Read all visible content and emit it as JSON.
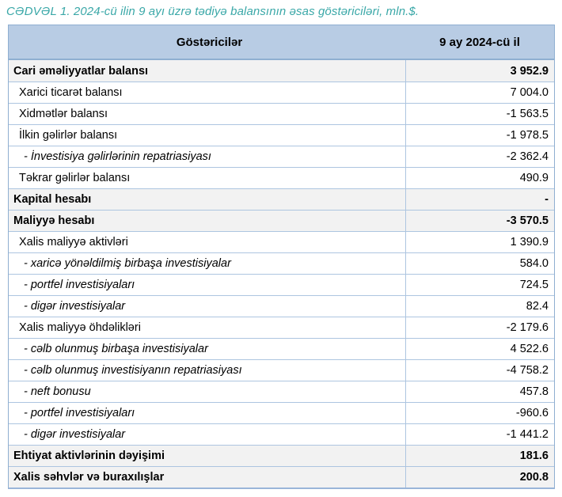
{
  "title": "CƏDVƏL 1. 2024-cü ilin 9 ayı üzrə tədiyə balansının əsas göstəriciləri, mln.$.",
  "table": {
    "columns": [
      "Göstəricilər",
      "9 ay 2024-cü il"
    ],
    "rows": [
      {
        "label": "Cari əməliyyatlar balansı",
        "value": "3 952.9",
        "style": "section"
      },
      {
        "label": "Xarici ticarət balansı",
        "value": "7 004.0",
        "style": "plain"
      },
      {
        "label": "Xidmətlər balansı",
        "value": "-1 563.5",
        "style": "plain"
      },
      {
        "label": "İlkin gəlirlər balansı",
        "value": "-1 978.5",
        "style": "plain"
      },
      {
        "label": "- İnvestisiya gəlirlərinin repatriasiyası",
        "value": "-2 362.4",
        "style": "sub"
      },
      {
        "label": "Təkrar gəlirlər balansı",
        "value": "490.9",
        "style": "plain"
      },
      {
        "label": "Kapital hesabı",
        "value": "-",
        "style": "section"
      },
      {
        "label": "Maliyyə hesabı",
        "value": "-3 570.5",
        "style": "section"
      },
      {
        "label": "Xalis maliyyə aktivləri",
        "value": "1 390.9",
        "style": "plain"
      },
      {
        "label": "- xaricə yönəldilmiş birbaşa investisiyalar",
        "value": "584.0",
        "style": "sub"
      },
      {
        "label": "- portfel investisiyaları",
        "value": "724.5",
        "style": "sub"
      },
      {
        "label": "- digər investisiyalar",
        "value": "82.4",
        "style": "sub"
      },
      {
        "label": "Xalis maliyyə öhdəlikləri",
        "value": "-2 179.6",
        "style": "plain"
      },
      {
        "label": "- cəlb olunmuş birbaşa investisiyalar",
        "value": "4 522.6",
        "style": "sub"
      },
      {
        "label": "- cəlb olunmuş investisiyanın repatriasiyası",
        "value": "-4 758.2",
        "style": "sub"
      },
      {
        "label": "- neft bonusu",
        "value": "457.8",
        "style": "sub"
      },
      {
        "label": "- portfel investisiyaları",
        "value": "-960.6",
        "style": "sub"
      },
      {
        "label": "- digər investisiyalar",
        "value": "-1 441.2",
        "style": "sub"
      },
      {
        "label": "Ehtiyat aktivlərinin dəyişimi",
        "value": "181.6",
        "style": "section"
      },
      {
        "label": "Xalis səhvlər və buraxılışlar",
        "value": "200.8",
        "style": "section"
      }
    ]
  },
  "colors": {
    "title_text": "#3BA8A8",
    "header_bg": "#B8CCE4",
    "section_row_bg": "#F2F2F2",
    "border_light": "#ADC5E0",
    "border_dark": "#8FAFD1"
  }
}
